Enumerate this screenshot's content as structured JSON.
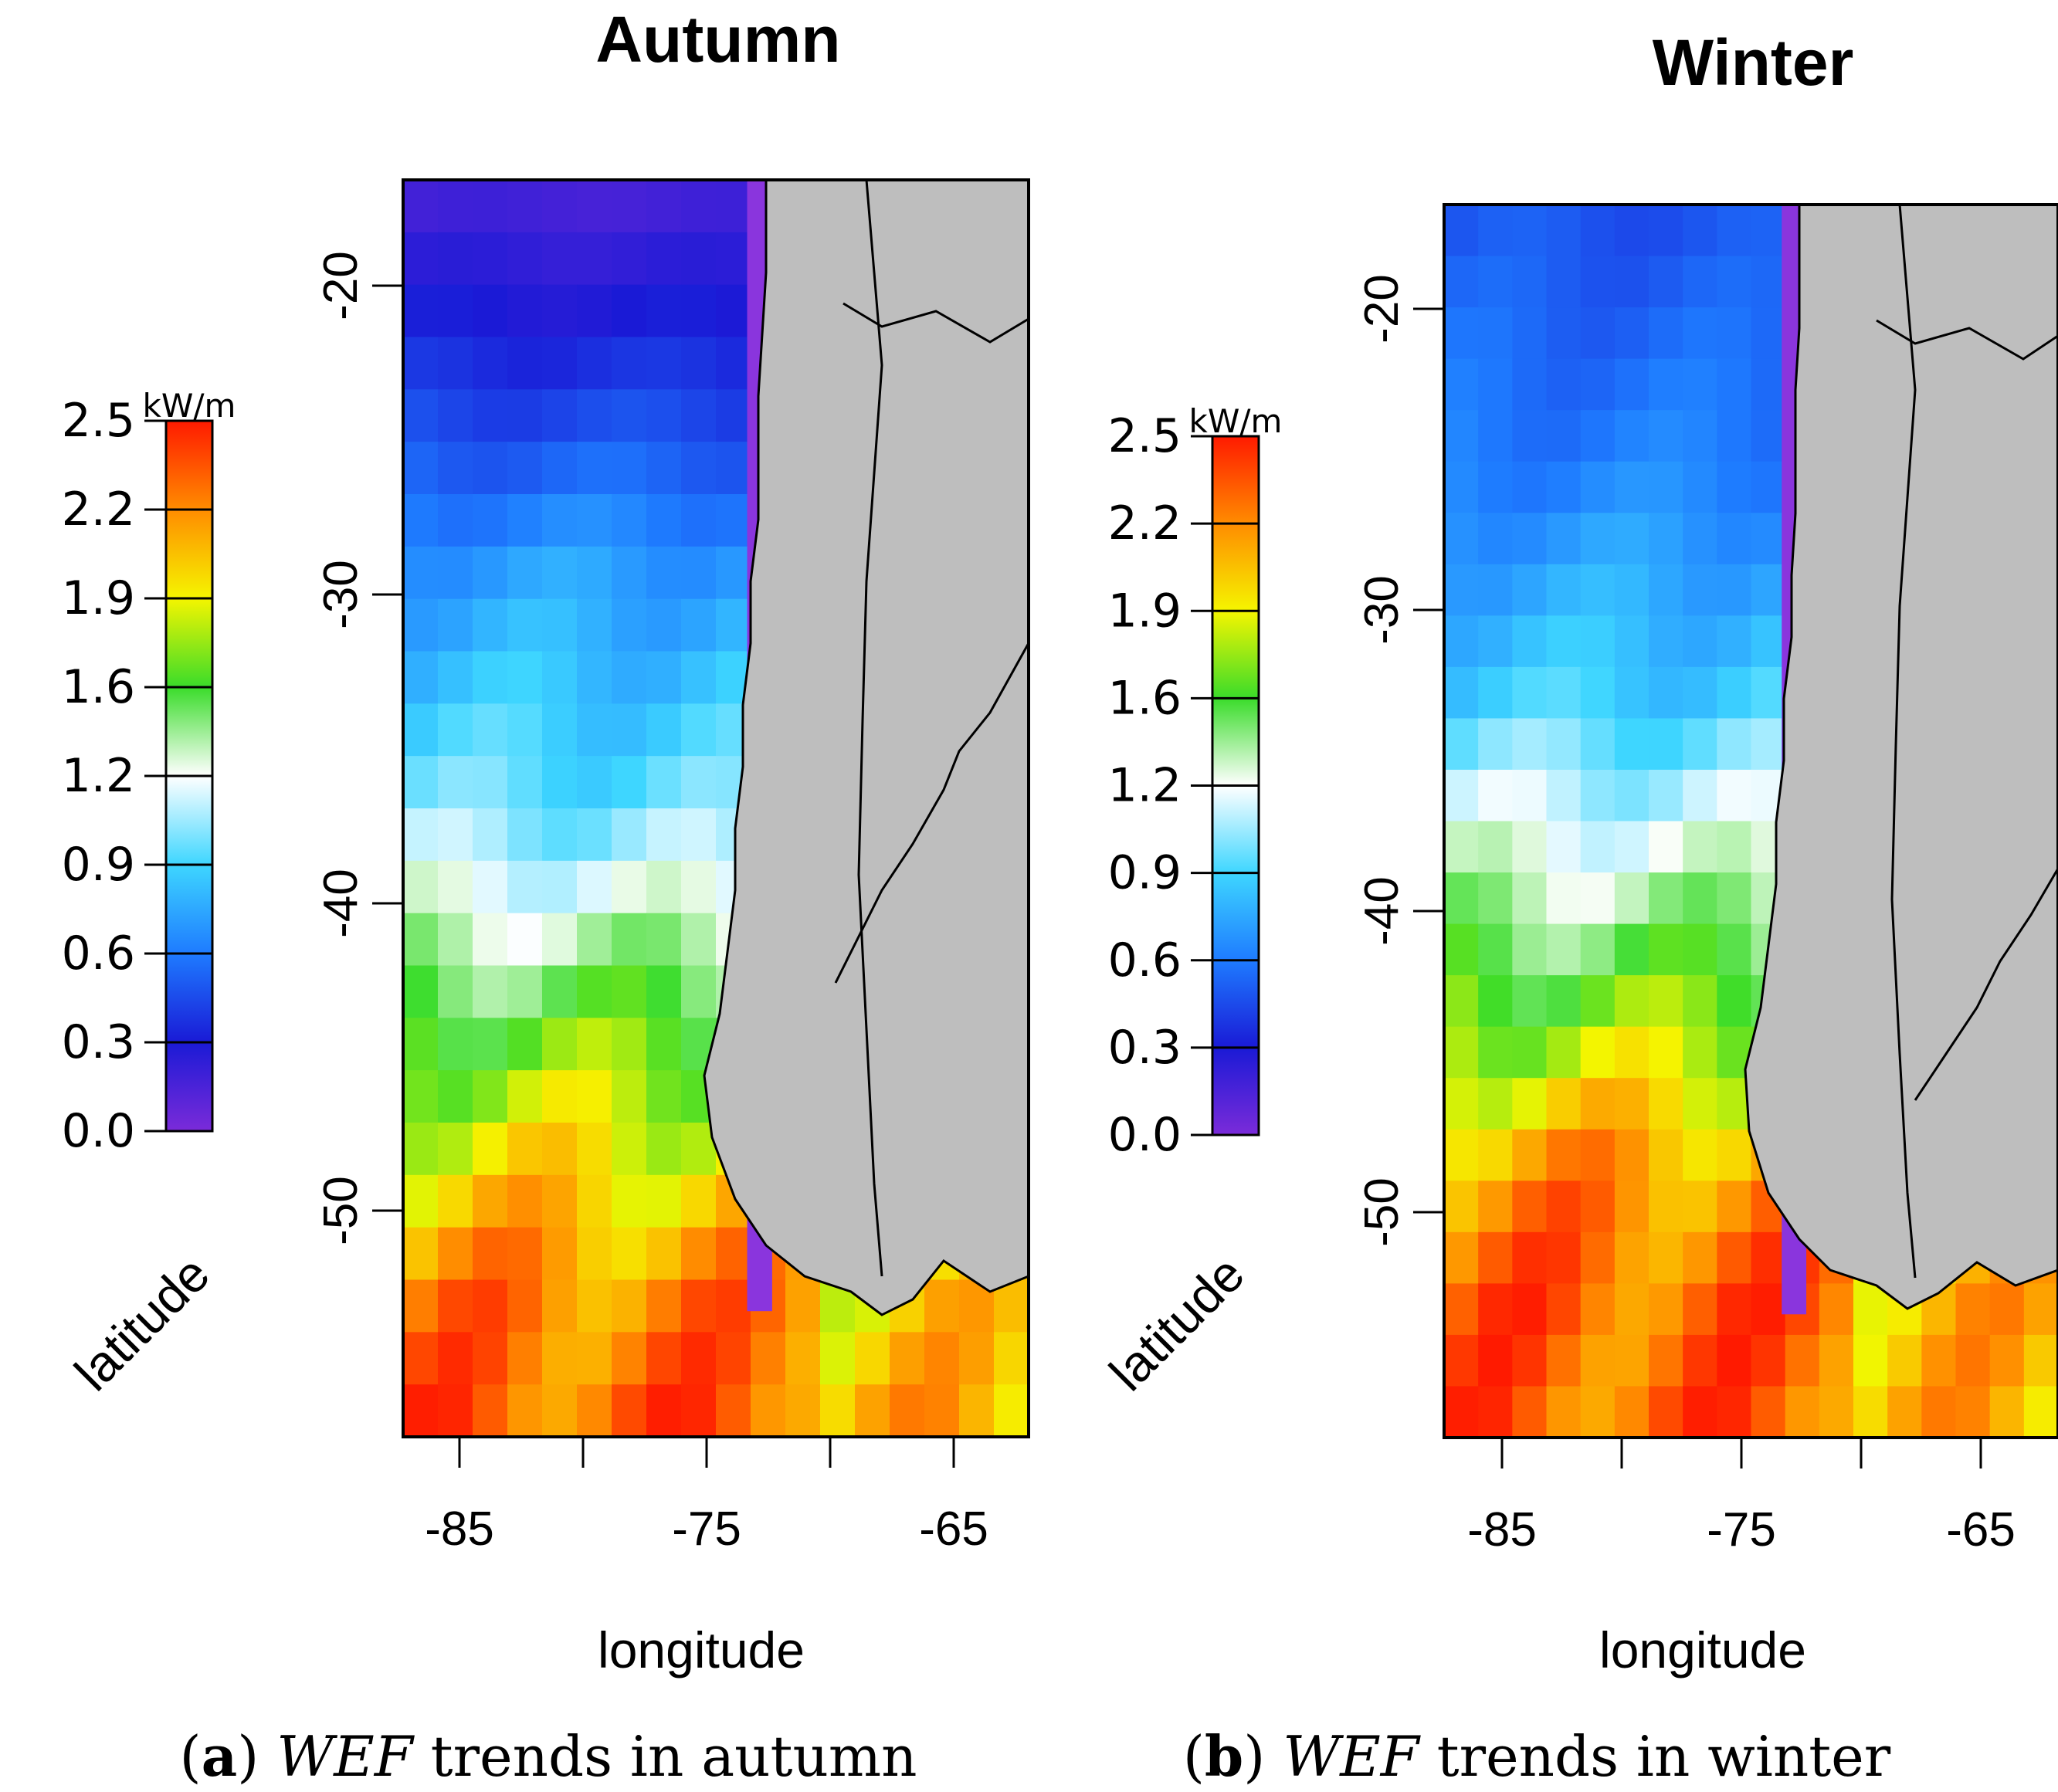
{
  "colorbar": {
    "unit": "kW/m",
    "ticks": [
      "0.0",
      "0.3",
      "0.6",
      "0.9",
      "1.2",
      "1.6",
      "1.9",
      "2.2",
      "2.5"
    ],
    "scale": [
      "#7b2bd9",
      "#1a1ad6",
      "#1e7bff",
      "#3ed6ff",
      "#ffffff",
      "#3adc2a",
      "#f5f500",
      "#ff8c00",
      "#ff1a00"
    ]
  },
  "land_color": "#bebebe",
  "coast_color": "#8a35dd",
  "panels": [
    {
      "title": "Autumn",
      "x_ticks": [
        "-85",
        "-75",
        "-65"
      ],
      "y_ticks": [
        "-20",
        "-30",
        "-40",
        "-50"
      ],
      "xlabel": "longitude",
      "ylabel": "latitude",
      "caption_letter": "a",
      "caption_var": "WEF",
      "caption_text": " trends in autumn",
      "field": {
        "lat_bands": [
          -17.5,
          -23,
          -28,
          -33,
          -36,
          -40,
          -44,
          -47,
          -50,
          -53,
          -56
        ],
        "values": [
          0.2,
          0.35,
          0.55,
          0.8,
          0.95,
          1.1,
          1.45,
          1.8,
          2.1,
          2.4,
          2.5
        ]
      }
    },
    {
      "title": "Winter",
      "x_ticks": [
        "-85",
        "-75",
        "-65"
      ],
      "y_ticks": [
        "-20",
        "-30",
        "-40",
        "-50"
      ],
      "xlabel": "longitude",
      "ylabel": "latitude",
      "caption_letter": "b",
      "caption_var": "WEF",
      "caption_text": " trends in winter",
      "field": {
        "lat_bands": [
          -17.5,
          -23,
          -28,
          -33,
          -36,
          -40,
          -44,
          -47,
          -50,
          -53,
          -56
        ],
        "values": [
          0.55,
          0.62,
          0.7,
          0.85,
          1.0,
          1.3,
          1.6,
          1.95,
          2.35,
          2.5,
          2.5
        ]
      }
    }
  ]
}
